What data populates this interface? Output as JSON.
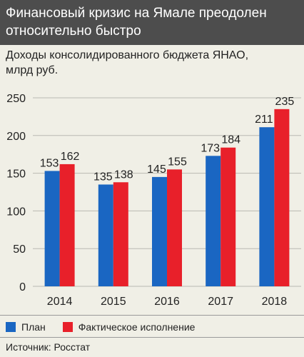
{
  "header": {
    "title_line1": "Финансовый кризис на Ямале преодолен",
    "title_line2": "относительно быстро"
  },
  "chart_data": {
    "type": "bar",
    "title": "Доходы консолидированного бюджета ЯНАО, млрд руб.",
    "title_line1": "Доходы консолидированного бюджета ЯНАО,",
    "title_line2": "млрд руб.",
    "categories": [
      "2014",
      "2015",
      "2016",
      "2017",
      "2018"
    ],
    "series": [
      {
        "name": "План",
        "values": [
          153,
          135,
          145,
          173,
          211
        ],
        "color": "#1a66c2"
      },
      {
        "name": "Фактическое исполнение",
        "values": [
          162,
          138,
          155,
          184,
          235
        ],
        "color": "#e8202a"
      }
    ],
    "ylim": [
      0,
      250
    ],
    "yticks": [
      0,
      50,
      100,
      150,
      200,
      250
    ],
    "grid": true,
    "legend": "bottom"
  },
  "source": "Источник: Росстат"
}
